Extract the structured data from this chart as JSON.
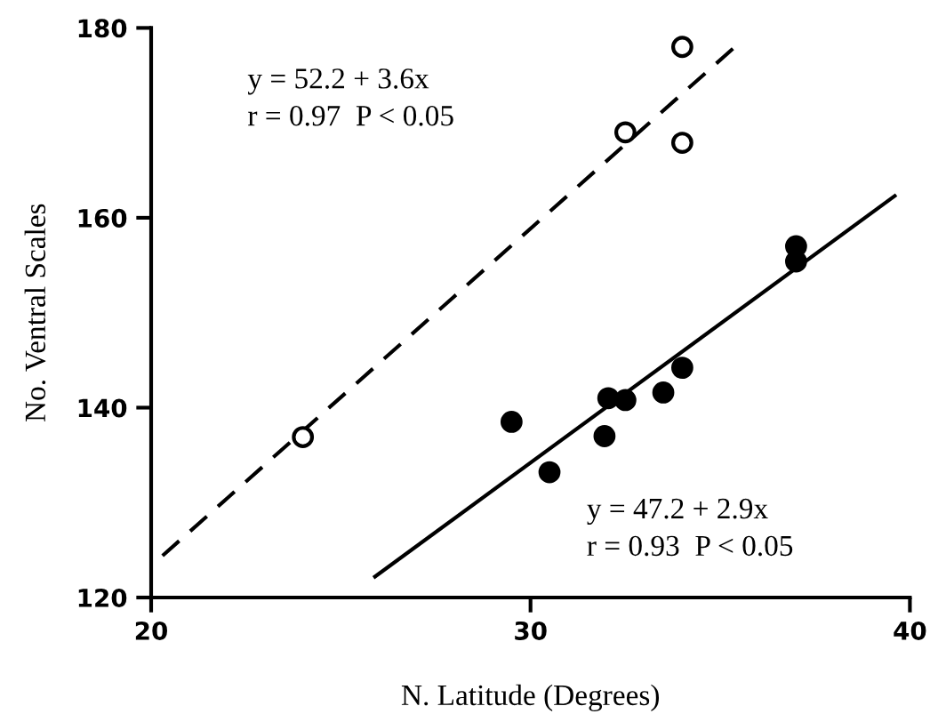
{
  "chart_data": {
    "type": "scatter",
    "xlabel": "N. Latitude (Degrees)",
    "ylabel": "No. Ventral Scales",
    "xlim": [
      20,
      40
    ],
    "xticks": [
      20,
      30,
      40
    ],
    "ylim": [
      120,
      180
    ],
    "yticks": [
      120,
      140,
      160,
      180
    ],
    "grid": false,
    "marker": "circle",
    "series": [
      {
        "color": "#ffffff",
        "x": [
          24.0,
          32.5,
          34.0,
          34.0
        ],
        "values": [
          136.9,
          169.0,
          178.0,
          167.9
        ]
      },
      {
        "color": "#000000",
        "x": [
          29.5,
          30.5,
          31.95,
          32.05,
          32.5,
          33.5,
          34.0,
          37.0,
          37.0
        ],
        "values": [
          138.5,
          133.2,
          137.0,
          141.0,
          140.8,
          141.6,
          144.2,
          157.0,
          155.4
        ]
      },
      {
        "type": "line",
        "color": "#000000",
        "line_style": "dashed",
        "marker": "none",
        "x": [
          20.3,
          35.5
        ],
        "values": [
          124.4,
          178.4
        ]
      },
      {
        "type": "line",
        "color": "#000000",
        "line_style": "solid",
        "marker": "none",
        "x": [
          25.9,
          39.6
        ],
        "values": [
          122.2,
          162.3
        ]
      }
    ],
    "annotations": [
      "y = 52.2 + 3.6x\nr = 0.97  P < 0.05",
      "y = 47.2 + 2.9x\nr = 0.93  P < 0.05"
    ]
  }
}
